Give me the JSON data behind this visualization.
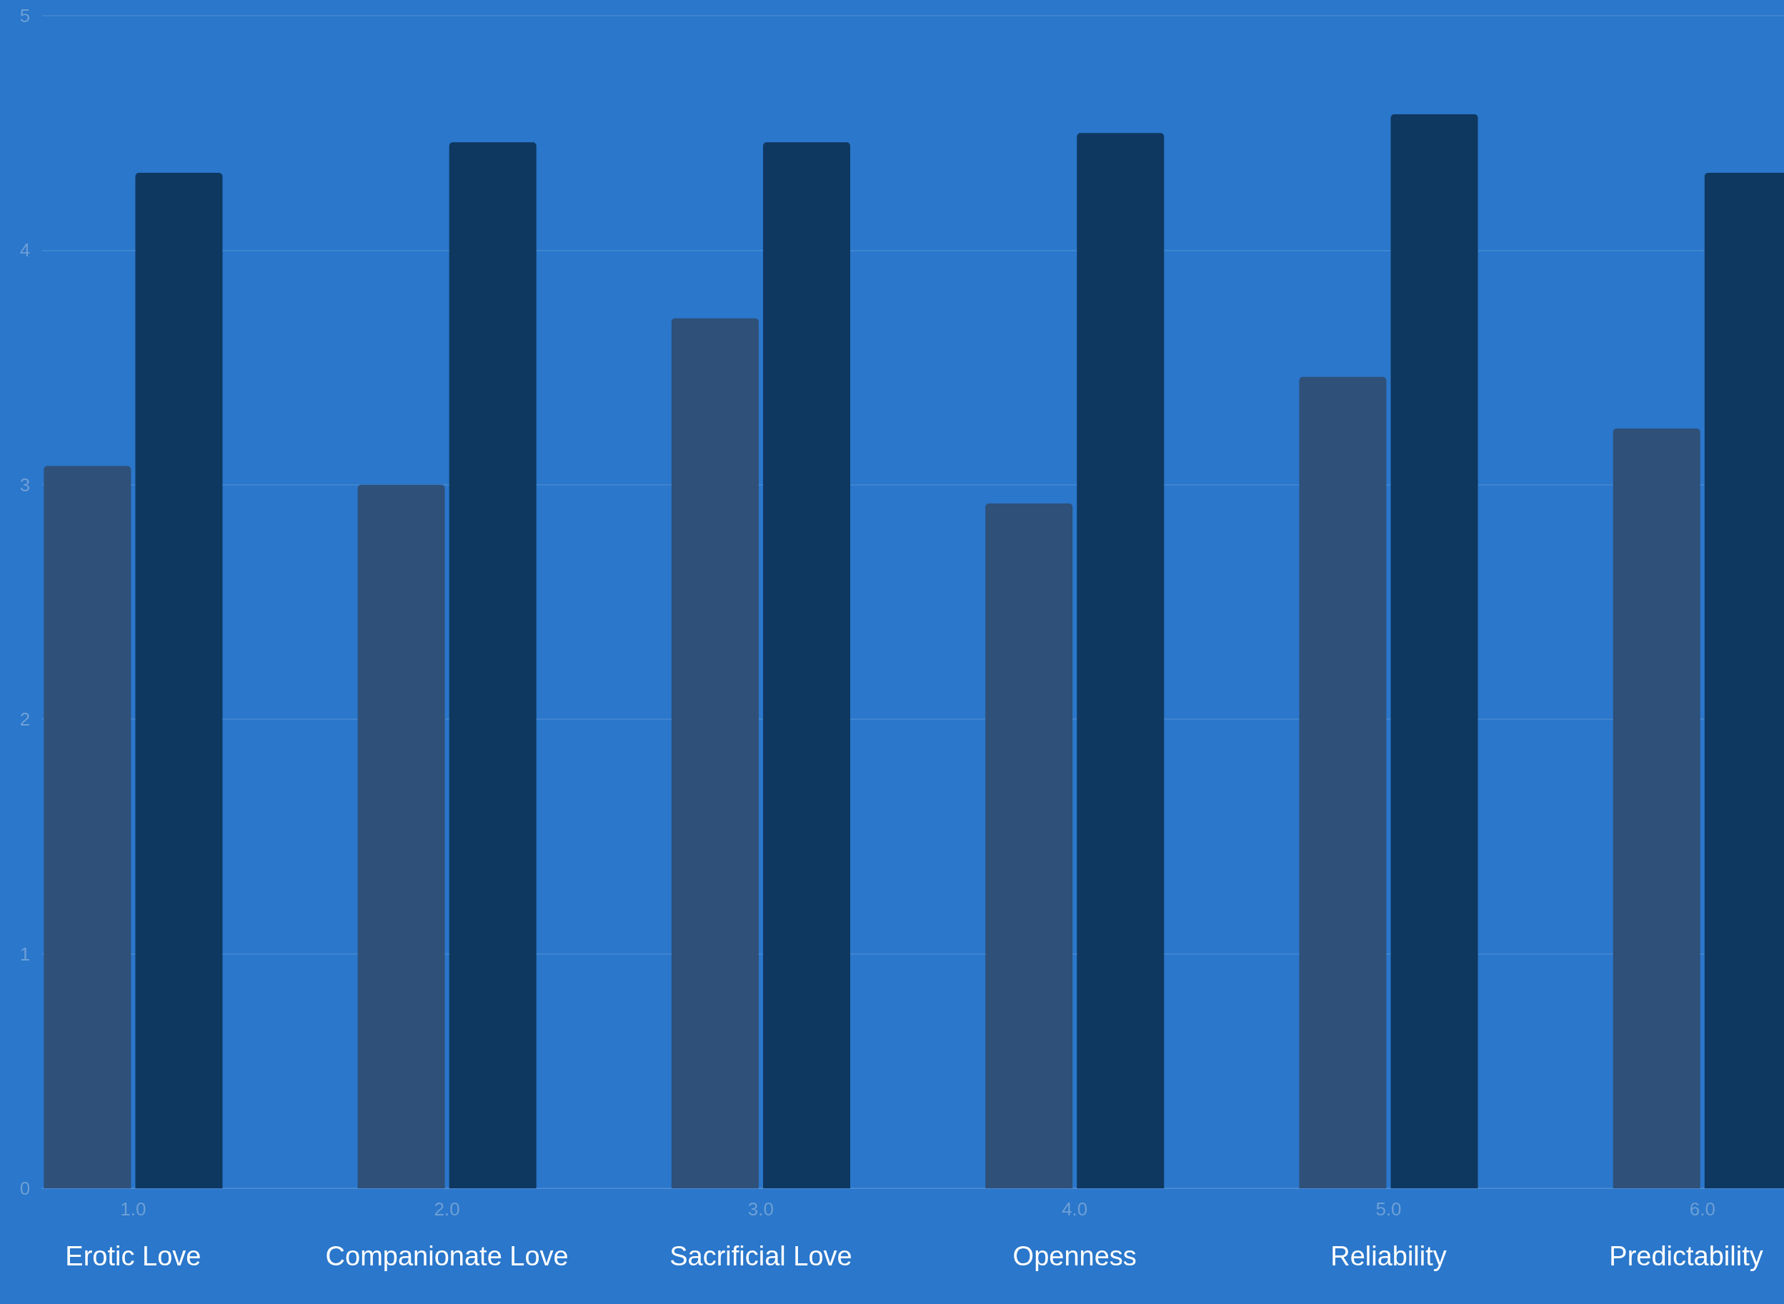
{
  "chart_data": {
    "type": "bar",
    "x": [
      1,
      2,
      3,
      4,
      5,
      6
    ],
    "series": [
      {
        "color": "#2f5079",
        "values": [
          3.08,
          3.0,
          3.71,
          2.92,
          3.46,
          3.24
        ]
      },
      {
        "color": "#0f3860",
        "values": [
          4.33,
          4.46,
          4.46,
          4.5,
          4.58,
          4.33
        ]
      }
    ],
    "xlim": [
      0.71,
      6.26
    ],
    "xticks": [
      {
        "value": 1,
        "label": "1.0"
      },
      {
        "value": 2,
        "label": "2.0"
      },
      {
        "value": 3,
        "label": "3.0"
      },
      {
        "value": 4,
        "label": "4.0"
      },
      {
        "value": 5,
        "label": "5.0"
      },
      {
        "value": 6,
        "label": "6.0"
      }
    ],
    "ylim": [
      0,
      5
    ],
    "yticks": [
      0,
      1,
      2,
      3,
      4,
      5
    ],
    "grid": "y",
    "annotations": [
      "Erotic Love",
      "Companionate Love",
      "Sacrificial Love",
      "Openness",
      "Reliability",
      "Predictability"
    ]
  }
}
